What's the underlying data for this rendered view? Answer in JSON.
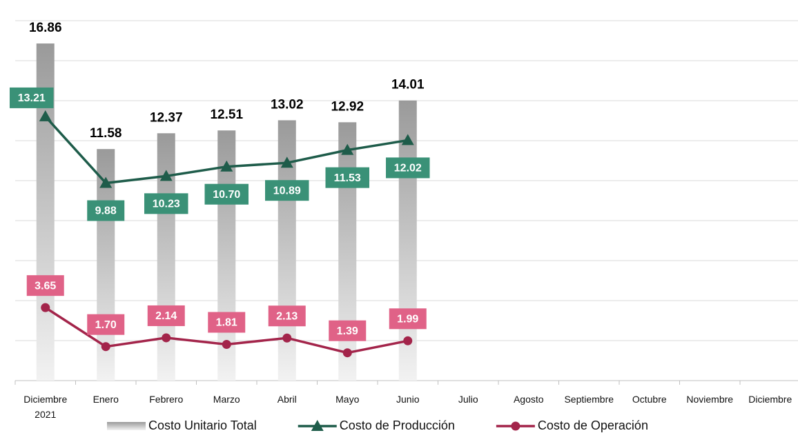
{
  "chart_data": {
    "type": "bar-line",
    "categories": [
      "Diciembre 2021",
      "Enero",
      "Febrero",
      "Marzo",
      "Abril",
      "Mayo",
      "Junio",
      "Julio",
      "Agosto",
      "Septiembre",
      "Octubre",
      "Noviembre",
      "Diciembre"
    ],
    "series": [
      {
        "name": "Costo Unitario Total",
        "kind": "bar",
        "color": "#9a9a9a",
        "values": [
          16.86,
          11.58,
          12.37,
          12.51,
          13.02,
          12.92,
          14.01,
          null,
          null,
          null,
          null,
          null,
          null
        ],
        "value_labels": [
          "16.86",
          "11.58",
          "12.37",
          "12.51",
          "13.02",
          "12.92",
          "14.01",
          null,
          null,
          null,
          null,
          null,
          null
        ]
      },
      {
        "name": "Costo de Producción",
        "kind": "line",
        "marker": "triangle",
        "color": "#1e5c4a",
        "label_color": "#3a9177",
        "values": [
          13.21,
          9.88,
          10.23,
          10.7,
          10.89,
          11.53,
          12.02,
          null,
          null,
          null,
          null,
          null,
          null
        ],
        "value_labels": [
          "13.21",
          "9.88",
          "10.23",
          "10.70",
          "10.89",
          "11.53",
          "12.02",
          null,
          null,
          null,
          null,
          null,
          null
        ]
      },
      {
        "name": "Costo de Operación",
        "kind": "line",
        "marker": "circle",
        "color": "#a3244a",
        "label_color": "#e06287",
        "values": [
          3.65,
          1.7,
          2.14,
          1.81,
          2.13,
          1.39,
          1.99,
          null,
          null,
          null,
          null,
          null,
          null
        ],
        "value_labels": [
          "3.65",
          "1.70",
          "2.14",
          "1.81",
          "2.13",
          "1.39",
          "1.99",
          null,
          null,
          null,
          null,
          null,
          null
        ]
      }
    ],
    "ylim": [
      0,
      18
    ],
    "yticks": [
      0,
      2,
      4,
      6,
      8,
      10,
      12,
      14,
      16,
      18
    ],
    "grid": true
  }
}
